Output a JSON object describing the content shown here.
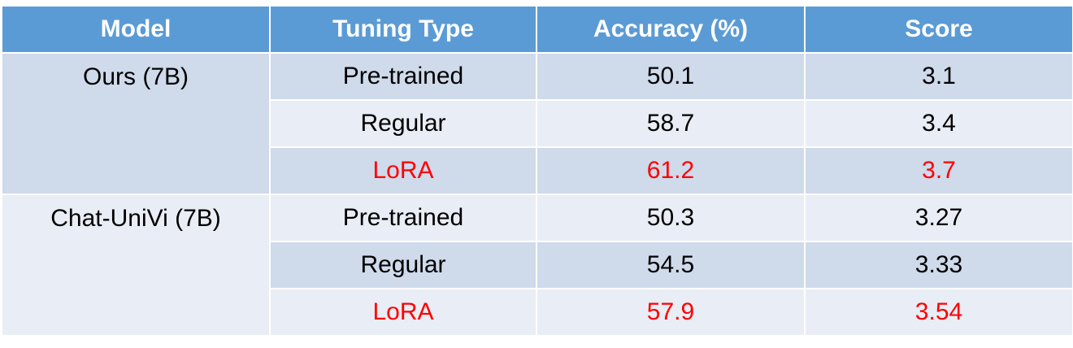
{
  "chart_data": {
    "type": "table",
    "columns": [
      "Model",
      "Tuning Type",
      "Accuracy (%)",
      "Score"
    ],
    "groups": [
      {
        "model": "Ours (7B)",
        "rows": [
          {
            "tuning": "Pre-trained",
            "accuracy": "50.1",
            "score": "3.1",
            "highlight": false
          },
          {
            "tuning": "Regular",
            "accuracy": "58.7",
            "score": "3.4",
            "highlight": false
          },
          {
            "tuning": "LoRA",
            "accuracy": "61.2",
            "score": "3.7",
            "highlight": true
          }
        ]
      },
      {
        "model": "Chat-UniVi (7B)",
        "rows": [
          {
            "tuning": "Pre-trained",
            "accuracy": "50.3",
            "score": "3.27",
            "highlight": false
          },
          {
            "tuning": "Regular",
            "accuracy": "54.5",
            "score": "3.33",
            "highlight": false
          },
          {
            "tuning": "LoRA",
            "accuracy": "57.9",
            "score": "3.54",
            "highlight": true
          }
        ]
      }
    ]
  },
  "colors": {
    "header_background": "#5b9bd5",
    "row_dark": "#cfdaeb",
    "row_light": "#e9edf5",
    "highlight_text": "#ff0000"
  }
}
